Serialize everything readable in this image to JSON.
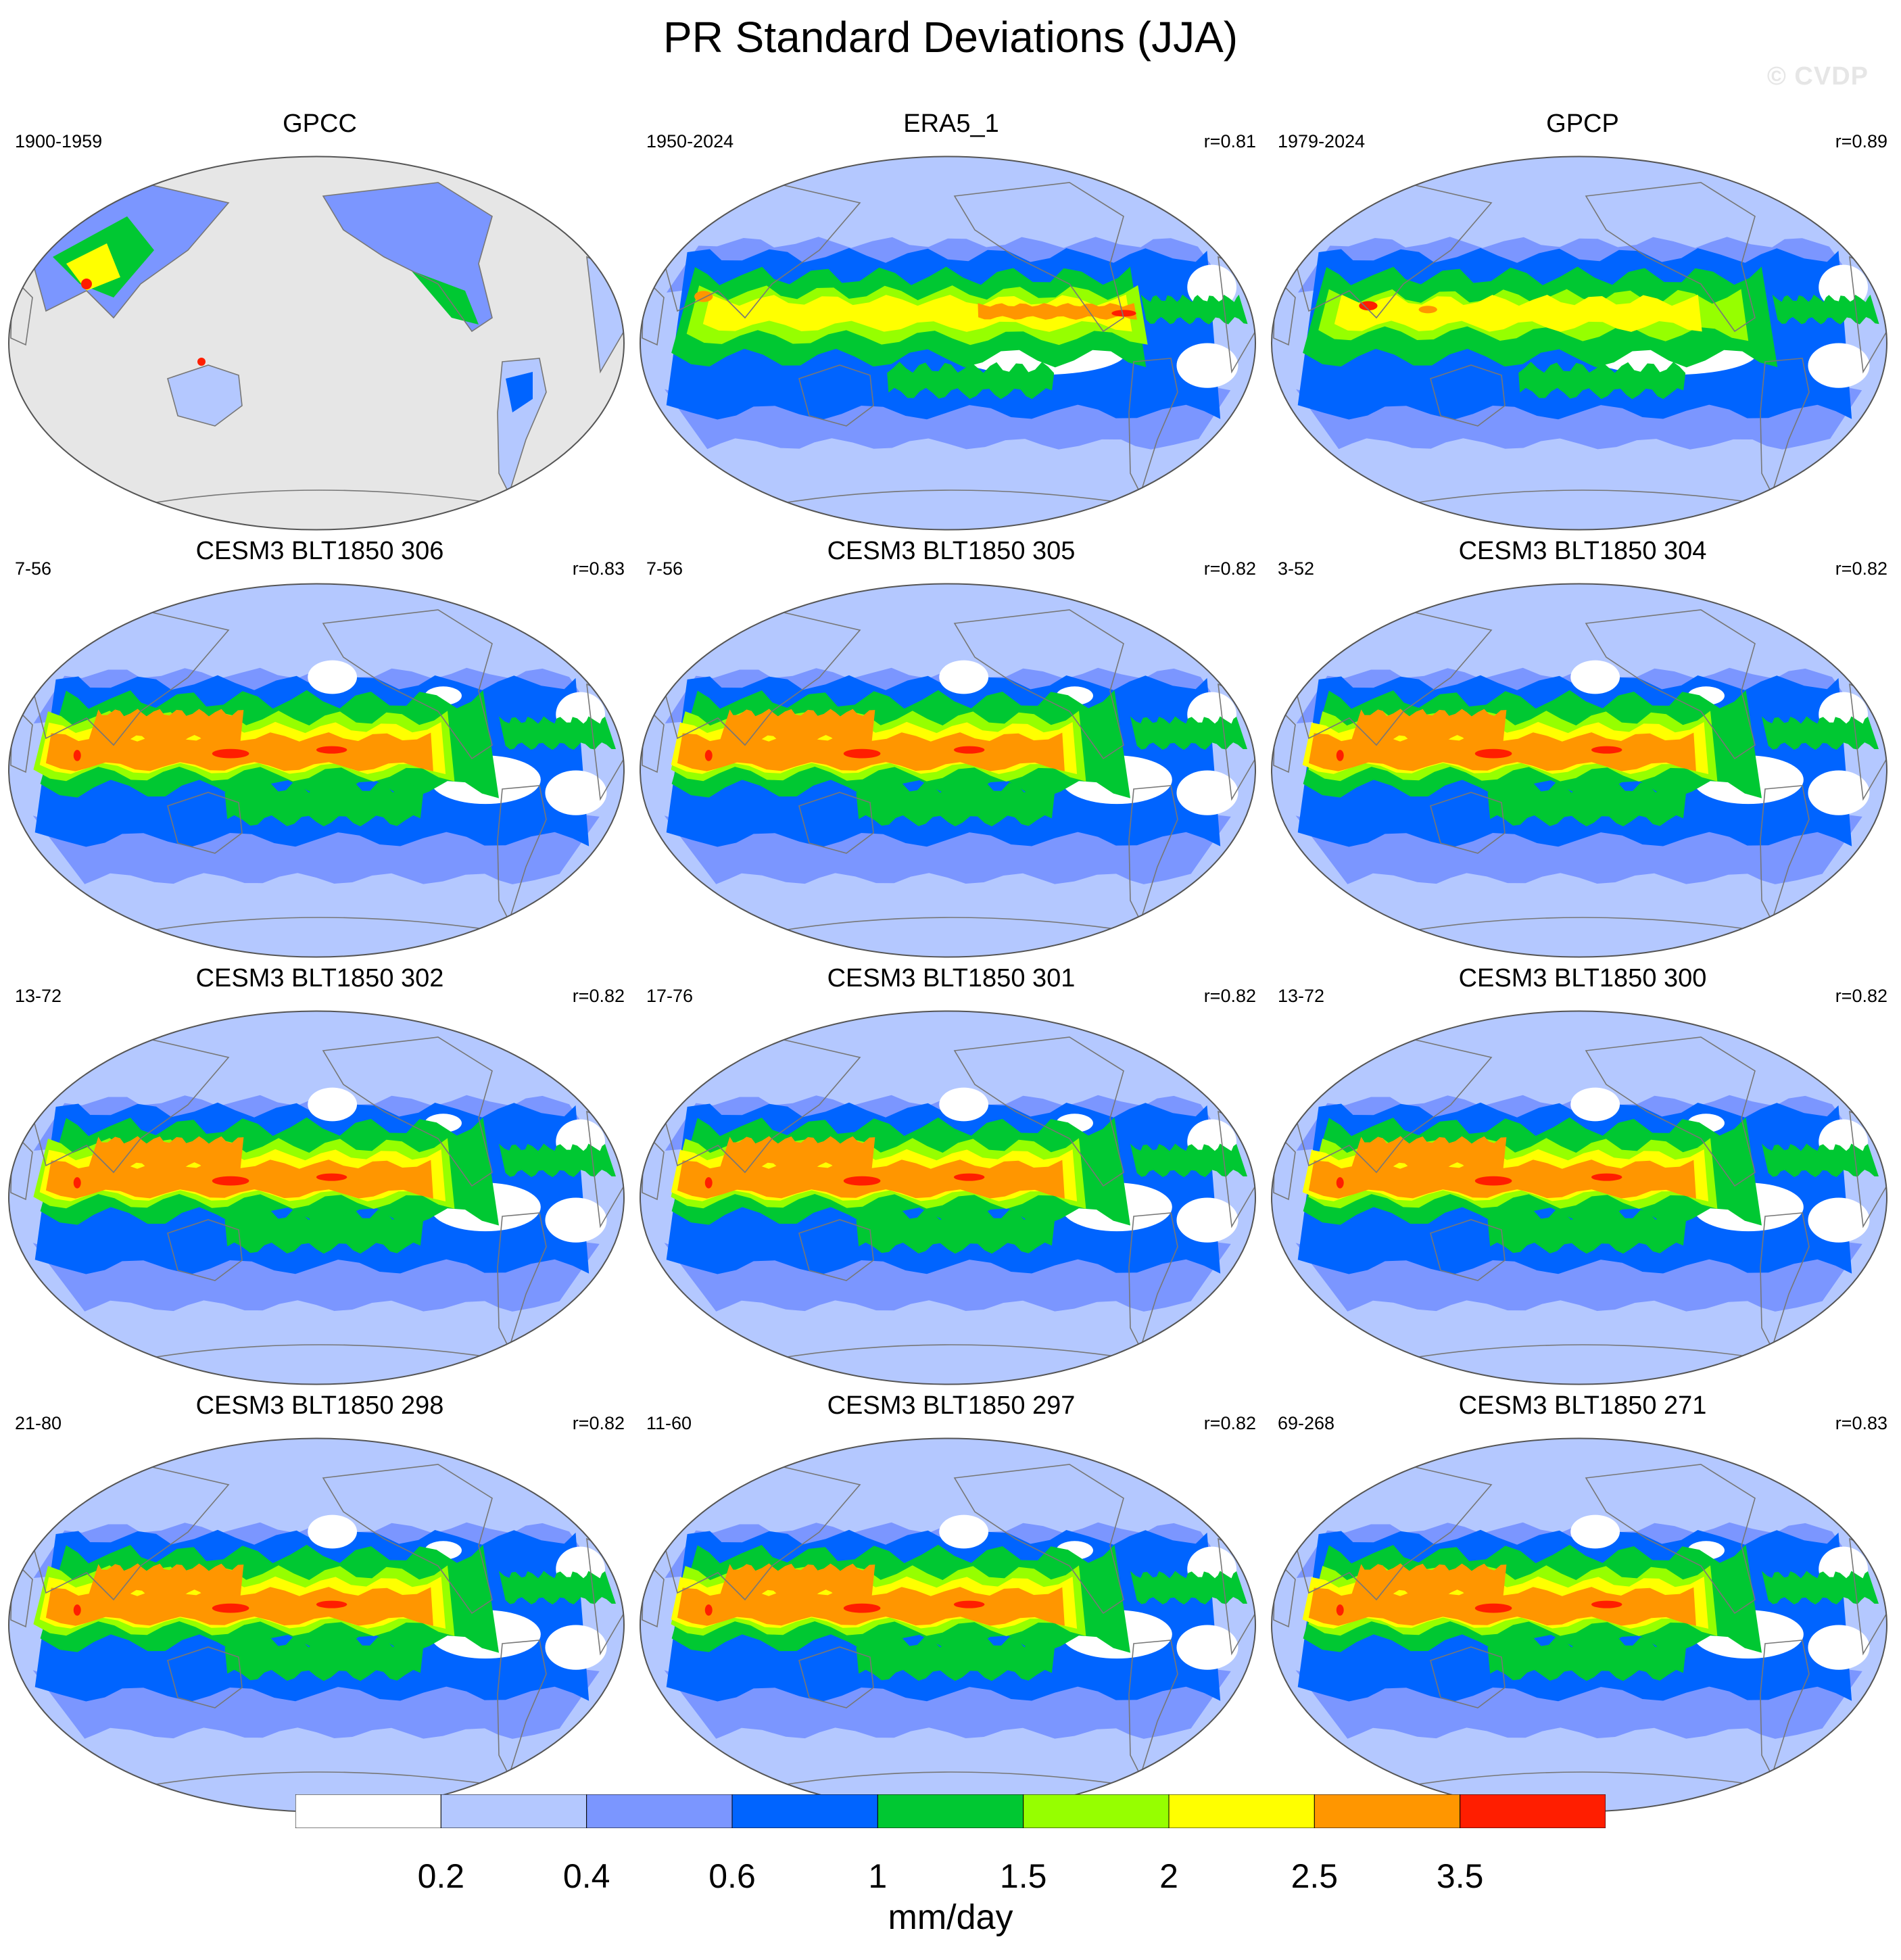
{
  "title": "PR Standard Deviations (JJA)",
  "watermark": "© CVDP",
  "panels": [
    {
      "title": "GPCC",
      "years": "1900-1959",
      "r": "",
      "kind": "land"
    },
    {
      "title": "ERA5_1",
      "years": "1950-2024",
      "r": "r=0.81",
      "kind": "reanalysis"
    },
    {
      "title": "GPCP",
      "years": "1979-2024",
      "r": "r=0.89",
      "kind": "obs"
    },
    {
      "title": "CESM3 BLT1850 306",
      "years": "7-56",
      "r": "r=0.83",
      "kind": "model"
    },
    {
      "title": "CESM3 BLT1850 305",
      "years": "7-56",
      "r": "r=0.82",
      "kind": "model"
    },
    {
      "title": "CESM3 BLT1850 304",
      "years": "3-52",
      "r": "r=0.82",
      "kind": "model"
    },
    {
      "title": "CESM3 BLT1850 302",
      "years": "13-72",
      "r": "r=0.82",
      "kind": "model"
    },
    {
      "title": "CESM3 BLT1850 301",
      "years": "17-76",
      "r": "r=0.82",
      "kind": "model"
    },
    {
      "title": "CESM3 BLT1850 300",
      "years": "13-72",
      "r": "r=0.82",
      "kind": "model"
    },
    {
      "title": "CESM3 BLT1850 298",
      "years": "21-80",
      "r": "r=0.82",
      "kind": "model"
    },
    {
      "title": "CESM3 BLT1850 297",
      "years": "11-60",
      "r": "r=0.82",
      "kind": "model"
    },
    {
      "title": "CESM3 BLT1850 271",
      "years": "69-268",
      "r": "r=0.83",
      "kind": "model"
    }
  ],
  "colorbar": {
    "colors": [
      "#ffffff",
      "#b4c8ff",
      "#7b96ff",
      "#0064ff",
      "#00c832",
      "#96ff00",
      "#ffff00",
      "#ff9600",
      "#ff1e00"
    ],
    "labels": [
      "0.2",
      "0.4",
      "0.6",
      "1",
      "1.5",
      "2",
      "2.5",
      "3.5"
    ],
    "units": "mm/day"
  },
  "ocean_fill_land_only_panel": "#e6e6e6"
}
